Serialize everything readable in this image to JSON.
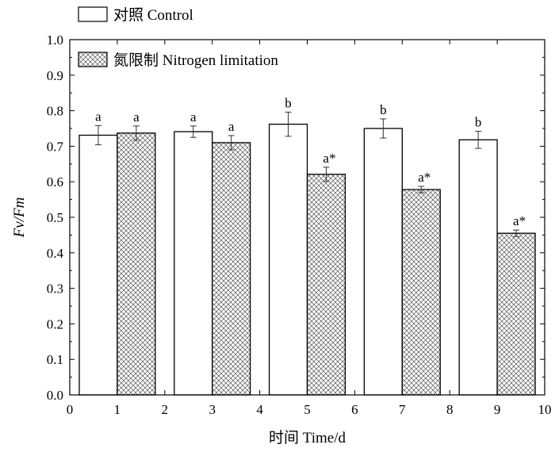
{
  "chart_data": {
    "type": "bar",
    "xlabel": "时间 Time/d",
    "ylabel": "Fv/Fm",
    "xlim": [
      0,
      10
    ],
    "ylim": [
      0.0,
      1.0
    ],
    "x_ticks": [
      "0",
      "1",
      "2",
      "3",
      "4",
      "5",
      "6",
      "7",
      "8",
      "9",
      "10"
    ],
    "y_ticks": [
      "0.0",
      "0.1",
      "0.2",
      "0.3",
      "0.4",
      "0.5",
      "0.6",
      "0.7",
      "0.8",
      "0.9",
      "1.0"
    ],
    "grid": false,
    "legend": "top-left",
    "series": [
      {
        "name": "对照 Control",
        "fill": "#ffffff",
        "pattern": "none",
        "x_ranges": [
          [
            0.2,
            1.0
          ],
          [
            2.2,
            3.0
          ],
          [
            4.2,
            5.0
          ],
          [
            6.2,
            7.0
          ],
          [
            8.2,
            9.0
          ]
        ],
        "values": [
          0.731,
          0.741,
          0.762,
          0.75,
          0.718
        ],
        "errors": [
          0.027,
          0.016,
          0.034,
          0.027,
          0.024
        ],
        "labels": [
          "a",
          "a",
          "b",
          "b",
          "b"
        ]
      },
      {
        "name": "氮限制 Nitrogen limitation",
        "fill": "#ffffff",
        "pattern": "crosshatch",
        "x_ranges": [
          [
            1.0,
            1.8
          ],
          [
            3.0,
            3.8
          ],
          [
            5.0,
            5.8
          ],
          [
            7.0,
            7.8
          ],
          [
            9.0,
            9.8
          ]
        ],
        "values": [
          0.737,
          0.71,
          0.621,
          0.578,
          0.455
        ],
        "errors": [
          0.02,
          0.02,
          0.02,
          0.009,
          0.009
        ],
        "labels": [
          "a",
          "a",
          "a*",
          "a*",
          "a*"
        ]
      }
    ]
  }
}
